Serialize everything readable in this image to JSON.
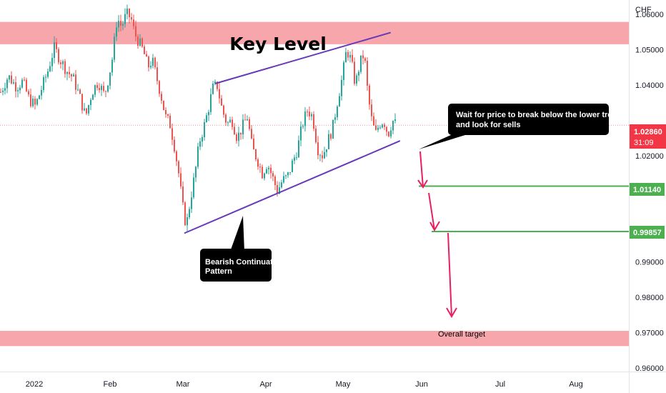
{
  "chart_data": {
    "type": "candlestick",
    "currency": "CHF",
    "x_labels": [
      "2022",
      "Feb",
      "Mar",
      "Apr",
      "May",
      "Jun",
      "Jul",
      "Aug"
    ],
    "y_ticks": [
      "1.06000",
      "1.05000",
      "1.04000",
      "1.02000",
      "0.99000",
      "0.98000",
      "0.97000",
      "0.96000"
    ],
    "ylim": [
      0.959,
      1.064
    ],
    "last_price": {
      "value": "1.02860",
      "countdown": "31:09",
      "color": "#f23645"
    },
    "levels": [
      {
        "name": "target-level-1",
        "label": "1.01140",
        "value": 1.0114,
        "color": "#4caf50"
      },
      {
        "name": "target-level-2",
        "label": "0.99857",
        "value": 0.99857,
        "color": "#4caf50"
      }
    ],
    "zones": [
      {
        "name": "key-level-zone",
        "label": "Key Level",
        "low": 1.0515,
        "high": 1.0578,
        "color": "#f7a6ac"
      },
      {
        "name": "overall-target-zone",
        "label": "Overall target",
        "low": 0.9662,
        "high": 0.9705,
        "color": "#f7a6ac"
      }
    ],
    "trendlines": [
      {
        "name": "upper-trendline",
        "x1": 0.3425,
        "y1": 1.0404,
        "x2": 0.6212,
        "y2": 1.0548,
        "color": "#673ab7"
      },
      {
        "name": "lower-trendline",
        "x1": 0.2931,
        "y1": 0.9981,
        "x2": 0.6362,
        "y2": 1.0242,
        "color": "#673ab7"
      }
    ],
    "annotations": [
      {
        "name": "breakout-note",
        "text": [
          "Wait for price to break below the lower trendline",
          "and look for sells"
        ]
      },
      {
        "name": "pattern-note",
        "text": [
          "Bearish Continuation",
          "Pattern"
        ]
      }
    ],
    "price_path": [
      [
        0.0,
        1.038
      ],
      [
        0.012,
        1.0425
      ],
      [
        0.025,
        1.0395
      ],
      [
        0.035,
        1.041
      ],
      [
        0.045,
        1.036
      ],
      [
        0.055,
        1.034
      ],
      [
        0.065,
        1.039
      ],
      [
        0.075,
        1.044
      ],
      [
        0.085,
        1.0505
      ],
      [
        0.095,
        1.047
      ],
      [
        0.105,
        1.044
      ],
      [
        0.115,
        1.042
      ],
      [
        0.125,
        1.037
      ],
      [
        0.135,
        1.031
      ],
      [
        0.145,
        1.038
      ],
      [
        0.155,
        1.041
      ],
      [
        0.165,
        1.037
      ],
      [
        0.172,
        1.0425
      ],
      [
        0.178,
        1.048
      ],
      [
        0.185,
        1.059
      ],
      [
        0.192,
        1.0565
      ],
      [
        0.2,
        1.06
      ],
      [
        0.207,
        1.059
      ],
      [
        0.213,
        1.0545
      ],
      [
        0.22,
        1.052
      ],
      [
        0.227,
        1.0495
      ],
      [
        0.234,
        1.045
      ],
      [
        0.241,
        1.047
      ],
      [
        0.248,
        1.042
      ],
      [
        0.255,
        1.037
      ],
      [
        0.262,
        1.031
      ],
      [
        0.269,
        1.029
      ],
      [
        0.276,
        1.023
      ],
      [
        0.283,
        1.015
      ],
      [
        0.289,
        1.006
      ],
      [
        0.295,
        1.0
      ],
      [
        0.302,
        1.008
      ],
      [
        0.309,
        1.015
      ],
      [
        0.316,
        1.024
      ],
      [
        0.323,
        1.028
      ],
      [
        0.33,
        1.033
      ],
      [
        0.337,
        1.039
      ],
      [
        0.344,
        1.04
      ],
      [
        0.352,
        1.033
      ],
      [
        0.36,
        1.029
      ],
      [
        0.368,
        1.03
      ],
      [
        0.376,
        1.025
      ],
      [
        0.384,
        1.028
      ],
      [
        0.392,
        1.031
      ],
      [
        0.4,
        1.022
      ],
      [
        0.408,
        1.019
      ],
      [
        0.416,
        1.015
      ],
      [
        0.424,
        1.018
      ],
      [
        0.432,
        1.014
      ],
      [
        0.44,
        1.01
      ],
      [
        0.448,
        1.013
      ],
      [
        0.456,
        1.014
      ],
      [
        0.464,
        1.018
      ],
      [
        0.472,
        1.022
      ],
      [
        0.48,
        1.029
      ],
      [
        0.488,
        1.033
      ],
      [
        0.496,
        1.031
      ],
      [
        0.504,
        1.022
      ],
      [
        0.512,
        1.02
      ],
      [
        0.52,
        1.024
      ],
      [
        0.528,
        1.028
      ],
      [
        0.536,
        1.036
      ],
      [
        0.543,
        1.042
      ],
      [
        0.55,
        1.05
      ],
      [
        0.557,
        1.047
      ],
      [
        0.564,
        1.04
      ],
      [
        0.571,
        1.046
      ],
      [
        0.578,
        1.049
      ],
      [
        0.584,
        1.037
      ],
      [
        0.59,
        1.03
      ],
      [
        0.596,
        1.026
      ],
      [
        0.602,
        1.029
      ],
      [
        0.609,
        1.03
      ],
      [
        0.616,
        1.026
      ],
      [
        0.623,
        1.03
      ],
      [
        0.63,
        1.0285
      ]
    ]
  }
}
